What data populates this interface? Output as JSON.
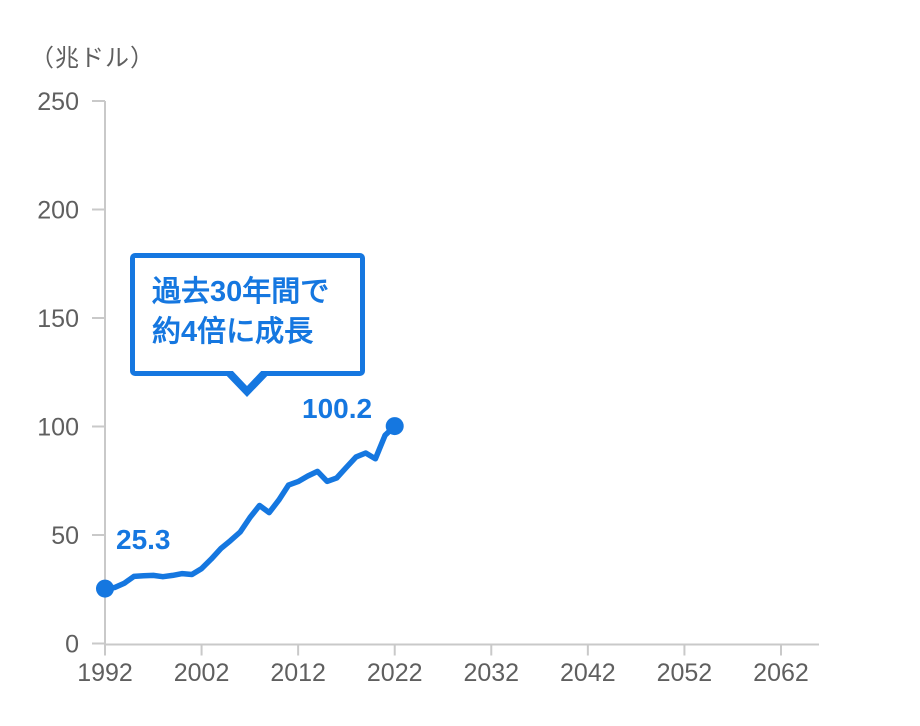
{
  "chart": {
    "unit_label": "（兆ドル）",
    "start_label": "25.3",
    "end_label": "100.2"
  },
  "callout": {
    "line1": "過去30年間で",
    "line2": "約4倍に成長"
  },
  "colors": {
    "accent": "#1577e0",
    "axis_line": "#c9c9c9",
    "tick_text": "#5f5f5f"
  },
  "chart_data": {
    "type": "line",
    "title": "",
    "ylabel": "（兆ドル）",
    "xlabel": "",
    "x": [
      1992,
      1993,
      1994,
      1995,
      1996,
      1997,
      1998,
      1999,
      2000,
      2001,
      2002,
      2003,
      2004,
      2005,
      2006,
      2007,
      2008,
      2009,
      2010,
      2011,
      2012,
      2013,
      2014,
      2015,
      2016,
      2017,
      2018,
      2019,
      2020,
      2021,
      2022
    ],
    "values": [
      25.3,
      25.8,
      27.8,
      30.9,
      31.2,
      31.4,
      30.8,
      31.4,
      32.2,
      31.8,
      34.5,
      38.9,
      43.8,
      47.4,
      51.4,
      58.0,
      63.6,
      60.3,
      66.1,
      73.0,
      74.6,
      77.2,
      79.3,
      74.7,
      76.3,
      81.2,
      86.0,
      87.8,
      85.1,
      96.0,
      100.2
    ],
    "x_ticks": [
      1992,
      2002,
      2012,
      2022,
      2032,
      2042,
      2052,
      2062
    ],
    "y_ticks": [
      0,
      50,
      100,
      150,
      200,
      250
    ],
    "xlim": [
      1992,
      2066
    ],
    "ylim": [
      0,
      250
    ],
    "grid": false,
    "legend": false,
    "point_labels": [
      {
        "x": 1992,
        "value": 25.3,
        "label": "25.3"
      },
      {
        "x": 2022,
        "value": 100.2,
        "label": "100.2"
      }
    ],
    "annotation": "過去30年間で約4倍に成長"
  }
}
